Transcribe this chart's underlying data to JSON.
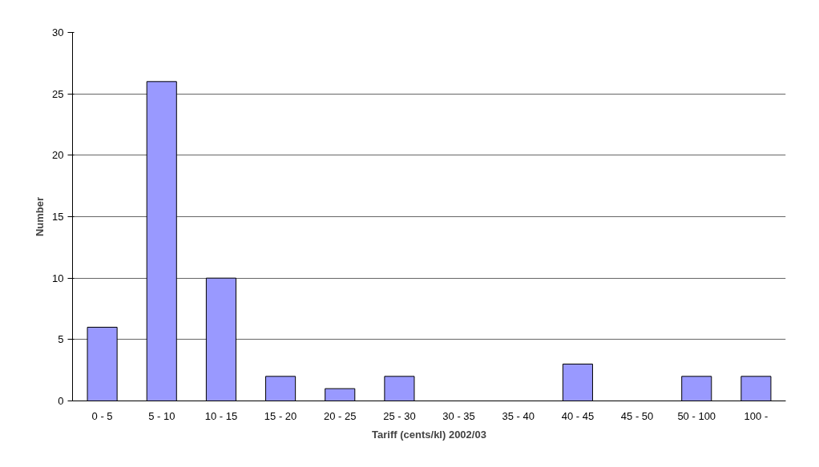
{
  "chart_data": {
    "type": "bar",
    "xlabel": "Tariff (cents/kl) 2002/03",
    "ylabel": "Number",
    "categories": [
      "0 - 5",
      "5 - 10",
      "10 - 15",
      "15 - 20",
      "20 - 25",
      "25 - 30",
      "30 - 35",
      "35 - 40",
      "40 - 45",
      "45 - 50",
      "50 - 100",
      "100 -"
    ],
    "values": [
      6,
      26,
      10,
      2,
      1,
      2,
      0,
      0,
      3,
      0,
      2,
      2
    ],
    "color": "#9999ff",
    "ylim": [
      0,
      30
    ],
    "yticks": [
      0,
      5,
      10,
      15,
      20,
      25,
      30
    ],
    "grid": "y"
  }
}
